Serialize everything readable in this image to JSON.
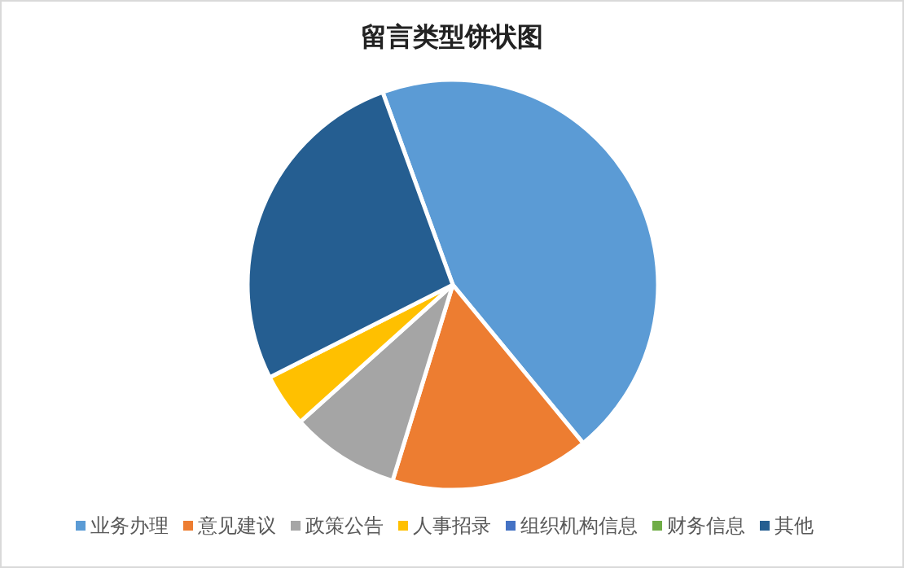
{
  "chart_data": {
    "type": "pie",
    "title": "留言类型饼状图",
    "categories": [
      "业务办理",
      "意见建议",
      "政策公告",
      "人事招录",
      "组织机构信息",
      "财务信息",
      "其他"
    ],
    "values": [
      44.6,
      15.7,
      8.6,
      4.2,
      0,
      0,
      26.9
    ],
    "colors": [
      "#5b9bd5",
      "#ed7d31",
      "#a5a5a5",
      "#ffc000",
      "#4472c4",
      "#70ad47",
      "#255e91"
    ],
    "legend": "bottom"
  }
}
